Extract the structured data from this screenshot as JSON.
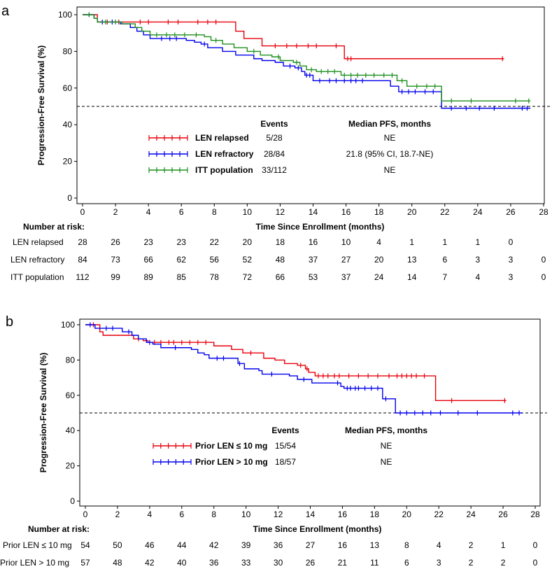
{
  "chart_data": [
    {
      "type": "line",
      "subtype": "kaplan-meier",
      "panel_label": "a",
      "ylabel": "Progression-Free Survival (%)",
      "xlabel": "Time Since Enrollment (months)",
      "xlim": [
        0,
        28
      ],
      "ylim": [
        0,
        100
      ],
      "xticks": [
        0,
        2,
        4,
        6,
        8,
        10,
        12,
        14,
        16,
        18,
        20,
        22,
        24,
        26,
        28
      ],
      "yticks": [
        0,
        20,
        40,
        60,
        80,
        100
      ],
      "reference_line_y": 50,
      "table_headers": {
        "events": "Events",
        "median": "Median PFS, months"
      },
      "series": [
        {
          "name": "LEN relapsed",
          "color": "#e8000b",
          "events": "5/28",
          "median": "NE",
          "steps": [
            [
              0,
              100
            ],
            [
              0.9,
              96
            ],
            [
              9.3,
              91
            ],
            [
              9.8,
              87
            ],
            [
              10.9,
              83
            ],
            [
              15.9,
              76
            ],
            [
              25.6,
              76
            ]
          ],
          "censor": [
            1.5,
            2.2,
            3.5,
            4.0,
            5.2,
            5.8,
            7.0,
            7.6,
            8.1,
            11.7,
            12.4,
            13.0,
            13.7,
            14.2,
            15.4,
            16.1,
            16.3,
            25.5
          ]
        },
        {
          "name": "LEN refractory",
          "color": "#0000ee",
          "events": "28/84",
          "median": "21.8 (95% CI, 18.7-NE)",
          "steps": [
            [
              0,
              100
            ],
            [
              0.7,
              98
            ],
            [
              0.9,
              96
            ],
            [
              2.3,
              95
            ],
            [
              2.9,
              93
            ],
            [
              3.3,
              91
            ],
            [
              3.7,
              89
            ],
            [
              4.1,
              87
            ],
            [
              6.3,
              86
            ],
            [
              6.8,
              85
            ],
            [
              7.2,
              84
            ],
            [
              7.6,
              82
            ],
            [
              8.5,
              80
            ],
            [
              9.3,
              78
            ],
            [
              10.4,
              76
            ],
            [
              10.9,
              75
            ],
            [
              11.7,
              74
            ],
            [
              12.2,
              72
            ],
            [
              12.9,
              71
            ],
            [
              13.3,
              69
            ],
            [
              13.5,
              67
            ],
            [
              14.0,
              64
            ],
            [
              17.2,
              64
            ],
            [
              18.7,
              61
            ],
            [
              19.2,
              58
            ],
            [
              21.8,
              49
            ],
            [
              27.2,
              49
            ]
          ],
          "censor": [
            0.4,
            1.2,
            1.8,
            4.8,
            5.3,
            5.7,
            7.4,
            12.6,
            13.1,
            13.6,
            13.8,
            14.4,
            15.0,
            15.4,
            15.9,
            16.3,
            16.6,
            17.0,
            19.4,
            19.8,
            20.2,
            20.8,
            21.3,
            22.4,
            23.3,
            24.1,
            25.0,
            26.7,
            27.0
          ]
        },
        {
          "name": "ITT population",
          "color": "#1d8f1d",
          "events": "33/112",
          "median": "NE",
          "steps": [
            [
              0,
              100
            ],
            [
              0.7,
              98
            ],
            [
              0.9,
              96
            ],
            [
              2.4,
              95
            ],
            [
              3.2,
              93
            ],
            [
              3.6,
              91
            ],
            [
              4.1,
              89
            ],
            [
              7.4,
              88
            ],
            [
              7.8,
              86
            ],
            [
              8.5,
              84
            ],
            [
              9.2,
              82
            ],
            [
              10.0,
              80
            ],
            [
              10.8,
              78
            ],
            [
              11.5,
              77
            ],
            [
              12.0,
              75
            ],
            [
              12.8,
              74
            ],
            [
              13.2,
              72
            ],
            [
              13.6,
              70
            ],
            [
              14.2,
              69
            ],
            [
              15.7,
              67
            ],
            [
              19.1,
              64
            ],
            [
              19.7,
              61
            ],
            [
              21.8,
              53
            ],
            [
              27.2,
              53
            ]
          ],
          "censor": [
            0.4,
            1.4,
            2.0,
            4.5,
            5.1,
            5.6,
            6.2,
            6.9,
            8.1,
            10.4,
            11.9,
            13.0,
            13.9,
            14.5,
            14.9,
            15.3,
            15.9,
            16.3,
            16.7,
            17.2,
            17.7,
            18.3,
            18.8,
            19.4,
            20.3,
            20.9,
            21.4,
            22.4,
            23.6,
            26.3,
            27.1
          ]
        }
      ],
      "risk_table": {
        "title": "Number at risk:",
        "times": [
          0,
          2,
          4,
          6,
          8,
          10,
          12,
          14,
          16,
          18,
          20,
          22,
          24,
          26,
          28
        ],
        "rows": [
          {
            "name": "LEN relapsed",
            "values": [
              "28",
              "26",
              "23",
              "23",
              "22",
              "20",
              "18",
              "16",
              "10",
              "4",
              "1",
              "1",
              "1",
              "0",
              ""
            ]
          },
          {
            "name": "LEN refractory",
            "values": [
              "84",
              "73",
              "66",
              "62",
              "56",
              "52",
              "48",
              "37",
              "27",
              "20",
              "13",
              "6",
              "3",
              "3",
              "0"
            ]
          },
          {
            "name": "ITT population",
            "values": [
              "112",
              "99",
              "89",
              "85",
              "78",
              "72",
              "66",
              "53",
              "37",
              "24",
              "14",
              "7",
              "4",
              "3",
              "0"
            ]
          }
        ]
      }
    },
    {
      "type": "line",
      "subtype": "kaplan-meier",
      "panel_label": "b",
      "ylabel": "Progression-Free Survival (%)",
      "xlabel": "Time Since Enrollment (months)",
      "xlim": [
        0,
        28
      ],
      "ylim": [
        0,
        100
      ],
      "xticks": [
        0,
        2,
        4,
        6,
        8,
        10,
        12,
        14,
        16,
        18,
        20,
        22,
        24,
        26,
        28
      ],
      "yticks": [
        0,
        20,
        40,
        60,
        80,
        100
      ],
      "reference_line_y": 50,
      "table_headers": {
        "events": "Events",
        "median": "Median PFS, months"
      },
      "series": [
        {
          "name": "Prior LEN ≤ 10 mg",
          "color": "#e8000b",
          "events": "15/54",
          "median": "NE",
          "steps": [
            [
              0,
              100
            ],
            [
              0.9,
              96
            ],
            [
              1.1,
              94
            ],
            [
              3.0,
              92
            ],
            [
              3.6,
              91
            ],
            [
              3.9,
              90
            ],
            [
              8.0,
              88
            ],
            [
              9.1,
              86
            ],
            [
              9.8,
              84
            ],
            [
              11.1,
              81
            ],
            [
              11.8,
              80
            ],
            [
              12.4,
              78
            ],
            [
              13.2,
              77
            ],
            [
              13.7,
              75
            ],
            [
              13.9,
              73
            ],
            [
              14.3,
              71
            ],
            [
              21.8,
              57
            ],
            [
              26.2,
              57
            ]
          ],
          "censor": [
            0.5,
            3.3,
            4.3,
            4.7,
            5.2,
            5.5,
            6.0,
            6.5,
            7.0,
            7.5,
            10.3,
            13.4,
            13.8,
            14.5,
            14.8,
            15.1,
            15.5,
            15.8,
            16.4,
            17.0,
            17.6,
            18.2,
            18.9,
            19.4,
            19.7,
            20.0,
            20.3,
            20.6,
            21.1,
            22.8,
            26.1
          ]
        },
        {
          "name": "Prior LEN > 10 mg",
          "color": "#0000ee",
          "events": "18/57",
          "median": "NE",
          "steps": [
            [
              0,
              100
            ],
            [
              0.6,
              98
            ],
            [
              2.3,
              96
            ],
            [
              2.9,
              94
            ],
            [
              3.3,
              92
            ],
            [
              3.8,
              90
            ],
            [
              4.2,
              89
            ],
            [
              4.7,
              87
            ],
            [
              6.6,
              86
            ],
            [
              7.0,
              84
            ],
            [
              7.4,
              83
            ],
            [
              7.7,
              81
            ],
            [
              9.5,
              78
            ],
            [
              9.9,
              75
            ],
            [
              10.8,
              74
            ],
            [
              11.0,
              72
            ],
            [
              12.7,
              71
            ],
            [
              13.2,
              69
            ],
            [
              14.1,
              67
            ],
            [
              15.9,
              65
            ],
            [
              16.1,
              64
            ],
            [
              18.5,
              58
            ],
            [
              19.3,
              50
            ],
            [
              27.2,
              50
            ]
          ],
          "censor": [
            0.3,
            1.3,
            1.7,
            2.7,
            4.0,
            5.6,
            8.2,
            8.6,
            9.6,
            11.6,
            13.6,
            15.7,
            16.3,
            16.5,
            16.8,
            17.0,
            17.4,
            17.8,
            18.2,
            18.7,
            19.6,
            20.0,
            20.5,
            21.0,
            21.5,
            22.1,
            23.2,
            24.4,
            26.6,
            27.0
          ]
        }
      ],
      "risk_table": {
        "title": "Number at risk:",
        "times": [
          0,
          2,
          4,
          6,
          8,
          10,
          12,
          14,
          16,
          18,
          20,
          22,
          24,
          26,
          28
        ],
        "rows": [
          {
            "name": "Prior LEN ≤ 10 mg",
            "values": [
              "54",
              "50",
              "46",
              "44",
              "42",
              "39",
              "36",
              "27",
              "16",
              "13",
              "8",
              "4",
              "2",
              "1",
              "0"
            ]
          },
          {
            "name": "Prior LEN > 10 mg",
            "values": [
              "57",
              "48",
              "42",
              "40",
              "36",
              "33",
              "30",
              "26",
              "21",
              "11",
              "6",
              "3",
              "2",
              "2",
              "0"
            ]
          }
        ]
      }
    }
  ]
}
